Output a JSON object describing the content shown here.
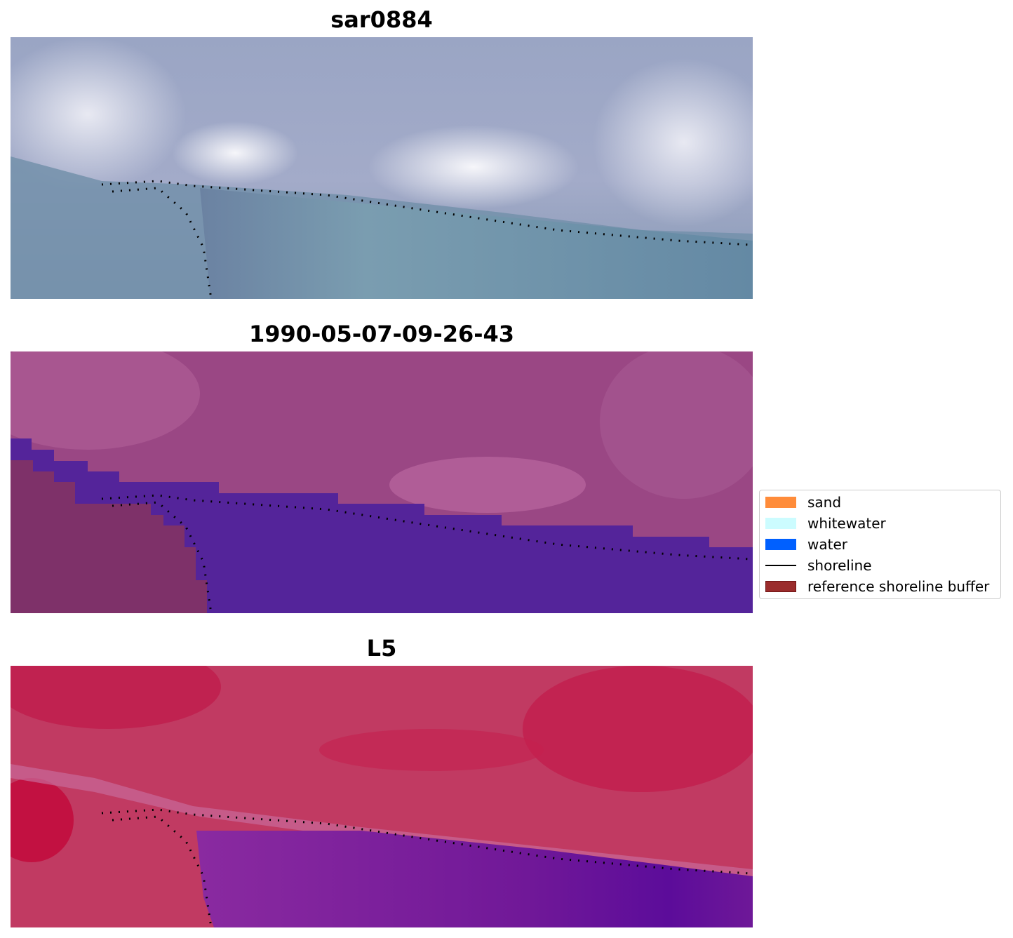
{
  "panels": [
    {
      "title": "sar0884",
      "kind": "rgb"
    },
    {
      "title": "1990-05-07-09-26-43",
      "kind": "classified"
    },
    {
      "title": "L5",
      "kind": "index"
    }
  ],
  "legend": {
    "items": [
      {
        "label": "sand",
        "color": "#ff8c3a"
      },
      {
        "label": "whitewater",
        "color": "#ccfcff"
      },
      {
        "label": "water",
        "color": "#0060ff"
      },
      {
        "label": "shoreline",
        "color": "#000000"
      },
      {
        "label": "reference shoreline buffer",
        "color": "#9b2c2c"
      }
    ]
  },
  "colors": {
    "rgb_sky": "#8a9ab8",
    "rgb_water": "#6a8ea8",
    "class_bg": "#98447f",
    "class_water": "#53249a",
    "class_buffer": "#7d3168",
    "index_red": "#c22a54",
    "index_purple": "#701898"
  }
}
